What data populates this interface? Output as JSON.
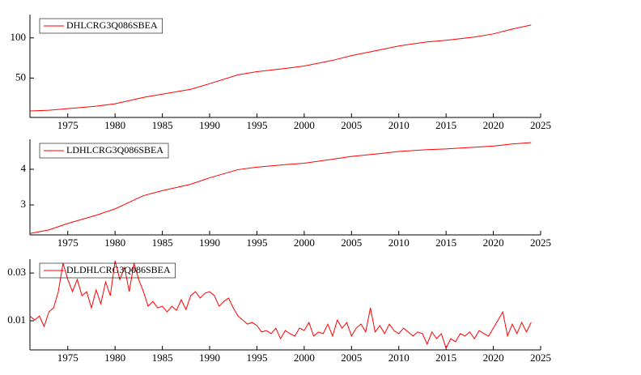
{
  "chart_data": [
    {
      "type": "line",
      "x": [
        1971,
        1973,
        1975,
        1978,
        1980,
        1983,
        1985,
        1988,
        1990,
        1993,
        1995,
        1998,
        2000,
        2003,
        2005,
        2008,
        2010,
        2013,
        2015,
        2018,
        2020,
        2022,
        2024
      ],
      "series": [
        {
          "name": "DHLCRG3Q086SBEA",
          "color": "#ff0000",
          "values": [
            9,
            10,
            12,
            15,
            18,
            26,
            30,
            36,
            43,
            54,
            58,
            62,
            65,
            72,
            78,
            85,
            90,
            95,
            97,
            101,
            105,
            111,
            116
          ]
        }
      ],
      "xlim": [
        1971,
        2025
      ],
      "xticks": [
        1975,
        1980,
        1985,
        1990,
        1995,
        2000,
        2005,
        2010,
        2015,
        2020,
        2025
      ],
      "ylim": [
        1,
        129
      ],
      "yticks": [
        50,
        100
      ],
      "legend": "top-left"
    },
    {
      "type": "line",
      "x": [
        1971,
        1973,
        1975,
        1978,
        1980,
        1983,
        1985,
        1988,
        1990,
        1993,
        1995,
        1998,
        2000,
        2003,
        2005,
        2008,
        2010,
        2013,
        2015,
        2018,
        2020,
        2022,
        2024
      ],
      "series": [
        {
          "name": "LDHLCRG3Q086SBEA",
          "color": "#ff0000",
          "values": [
            2.2,
            2.3,
            2.48,
            2.71,
            2.89,
            3.26,
            3.4,
            3.58,
            3.76,
            3.99,
            4.06,
            4.13,
            4.17,
            4.28,
            4.36,
            4.44,
            4.5,
            4.55,
            4.57,
            4.62,
            4.65,
            4.71,
            4.75
          ]
        }
      ],
      "xlim": [
        1971,
        2025
      ],
      "xticks": [
        1975,
        1980,
        1985,
        1990,
        1995,
        2000,
        2005,
        2010,
        2015,
        2020,
        2025
      ],
      "ylim": [
        2.16,
        4.84
      ],
      "yticks": [
        3,
        4
      ],
      "legend": "top-left"
    },
    {
      "type": "line",
      "x": [
        1971,
        1971.5,
        1972,
        1972.5,
        1973,
        1973.5,
        1974,
        1974.5,
        1975,
        1975.5,
        1976,
        1976.5,
        1977,
        1977.5,
        1978,
        1978.5,
        1979,
        1979.5,
        1980,
        1980.5,
        1981,
        1981.5,
        1982,
        1982.5,
        1983,
        1983.5,
        1984,
        1984.5,
        1985,
        1985.5,
        1986,
        1986.5,
        1987,
        1987.5,
        1988,
        1988.5,
        1989,
        1989.5,
        1990,
        1990.5,
        1991,
        1991.5,
        1992,
        1992.5,
        1993,
        1993.5,
        1994,
        1994.5,
        1995,
        1995.5,
        1996,
        1996.5,
        1997,
        1997.5,
        1998,
        1998.5,
        1999,
        1999.5,
        2000,
        2000.5,
        2001,
        2001.5,
        2002,
        2002.5,
        2003,
        2003.5,
        2004,
        2004.5,
        2005,
        2005.5,
        2006,
        2006.5,
        2007,
        2007.5,
        2008,
        2008.5,
        2009,
        2009.5,
        2010,
        2010.5,
        2011,
        2011.5,
        2012,
        2012.5,
        2013,
        2013.5,
        2014,
        2014.5,
        2015,
        2015.5,
        2016,
        2016.5,
        2017,
        2017.5,
        2018,
        2018.5,
        2019,
        2019.5,
        2020,
        2020.5,
        2021,
        2021.5,
        2022,
        2022.5,
        2023,
        2023.5,
        2024
      ],
      "series": [
        {
          "name": "DLDHLCRG3Q086SBEA",
          "color": "#ff0000",
          "values": [
            0.012,
            0.0103,
            0.012,
            0.0076,
            0.0137,
            0.0154,
            0.0222,
            0.0341,
            0.0273,
            0.0222,
            0.0273,
            0.0205,
            0.0222,
            0.0154,
            0.0229,
            0.0171,
            0.0263,
            0.0205,
            0.0351,
            0.0273,
            0.0324,
            0.0222,
            0.0341,
            0.0273,
            0.0222,
            0.0161,
            0.0181,
            0.0154,
            0.0161,
            0.0137,
            0.0161,
            0.0144,
            0.0188,
            0.0147,
            0.0205,
            0.0222,
            0.0195,
            0.0215,
            0.0222,
            0.0205,
            0.0161,
            0.0181,
            0.0195,
            0.0154,
            0.012,
            0.0103,
            0.0086,
            0.0093,
            0.008,
            0.0053,
            0.0059,
            0.0046,
            0.0069,
            0.0025,
            0.0059,
            0.0046,
            0.0036,
            0.0069,
            0.0059,
            0.0093,
            0.0036,
            0.0053,
            0.0046,
            0.0086,
            0.0036,
            0.0103,
            0.0069,
            0.0093,
            0.0036,
            0.0069,
            0.0086,
            0.0053,
            0.0154,
            0.0053,
            0.008,
            0.0046,
            0.0086,
            0.0059,
            0.0046,
            0.0069,
            0.0053,
            0.0036,
            0.0053,
            0.0046,
            0.0002,
            0.0053,
            0.0025,
            0.0046,
            -0.0015,
            0.0025,
            0.0012,
            0.0046,
            0.0036,
            0.0053,
            0.0025,
            0.0059,
            0.0046,
            0.0036,
            0.0069,
            0.0103,
            0.0137,
            0.0036,
            0.0086,
            0.0046,
            0.0093,
            0.0053,
            0.0093
          ]
        }
      ],
      "xlim": [
        1971,
        2025
      ],
      "xticks": [
        1975,
        1980,
        1985,
        1990,
        1995,
        2000,
        2005,
        2010,
        2015,
        2020,
        2025
      ],
      "ylim": [
        -0.0022,
        0.0358
      ],
      "yticks": [
        0.01,
        0.03
      ],
      "legend": "top-left"
    }
  ]
}
